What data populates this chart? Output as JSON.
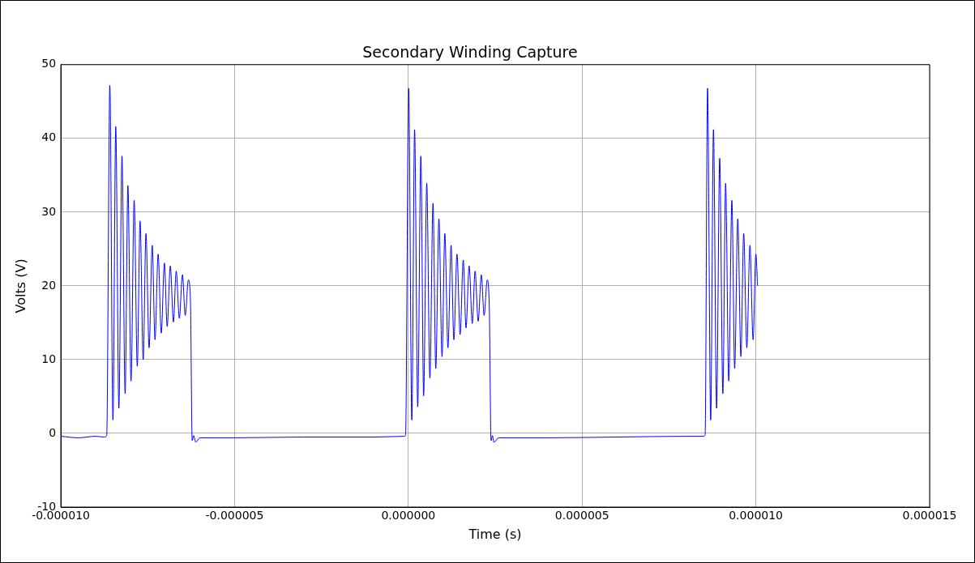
{
  "chart_data": {
    "type": "line",
    "title": "Secondary Winding Capture",
    "xlabel": "Time (s)",
    "ylabel": "Volts (V)",
    "xlim": [
      -1e-05,
      1.5e-05
    ],
    "ylim": [
      -10,
      50
    ],
    "xticks": [
      {
        "value": -1e-05,
        "label": "-0.000010"
      },
      {
        "value": -5e-06,
        "label": "-0.000005"
      },
      {
        "value": 0,
        "label": "0.000000"
      },
      {
        "value": 5e-06,
        "label": "0.000005"
      },
      {
        "value": 1e-05,
        "label": "0.000010"
      },
      {
        "value": 1.5e-05,
        "label": "0.000015"
      }
    ],
    "yticks": [
      -10,
      0,
      10,
      20,
      30,
      40,
      50
    ],
    "grid": true,
    "marker": "none",
    "line_style": "solid",
    "legend": false,
    "series": [
      {
        "color": "#0000ff",
        "x": [
          -1e-05,
          -9.5e-06,
          -9e-06,
          -8.75e-06,
          -8.68e-06,
          -8.59e-06,
          -8.5e-06,
          -8.42e-06,
          -8.33e-06,
          -8.24e-06,
          -8.15e-06,
          -8.07e-06,
          -7.98e-06,
          -7.89e-06,
          -7.8e-06,
          -7.72e-06,
          -7.63e-06,
          -7.55e-06,
          -7.46e-06,
          -7.37e-06,
          -7.29e-06,
          -7.2e-06,
          -7.11e-06,
          -7.02e-06,
          -6.94e-06,
          -6.85e-06,
          -6.76e-06,
          -6.68e-06,
          -6.59e-06,
          -6.5e-06,
          -6.42e-06,
          -6.33e-06,
          -6.27e-06,
          -6.22e-06,
          -6.18e-06,
          -6.12e-06,
          -6e-06,
          -5e-06,
          -3e-06,
          -1e-06,
          -1.2e-07,
          -8e-08,
          1e-08,
          1e-07,
          1.8e-07,
          2.7e-07,
          3.6e-07,
          4.4e-07,
          5.3e-07,
          6.2e-07,
          7.1e-07,
          7.9e-07,
          8.8e-07,
          9.7e-07,
          1.05e-06,
          1.14e-06,
          1.23e-06,
          1.31e-06,
          1.4e-06,
          1.49e-06,
          1.58e-06,
          1.66e-06,
          1.75e-06,
          1.84e-06,
          1.92e-06,
          2.01e-06,
          2.1e-06,
          2.18e-06,
          2.27e-06,
          2.33e-06,
          2.38e-06,
          2.42e-06,
          2.46e-06,
          2.6e-06,
          4e-06,
          6e-06,
          8e-06,
          8.5e-06,
          8.54e-06,
          8.61e-06,
          8.7e-06,
          8.78e-06,
          8.87e-06,
          8.96e-06,
          9.05e-06,
          9.13e-06,
          9.22e-06,
          9.31e-06,
          9.39e-06,
          9.48e-06,
          9.57e-06,
          9.65e-06,
          9.74e-06,
          9.83e-06,
          9.92e-06,
          1e-05,
          1.005e-05
        ],
        "values": [
          -0.4,
          -0.6,
          -0.4,
          -0.5,
          -0.3,
          47.2,
          1.8,
          41.6,
          3.4,
          37.6,
          5.4,
          33.6,
          7.1,
          31.6,
          9.1,
          28.8,
          10.0,
          27.1,
          11.6,
          25.5,
          12.7,
          24.3,
          13.6,
          23.1,
          14.5,
          22.7,
          15.1,
          22.0,
          15.6,
          21.5,
          16.0,
          20.8,
          18.0,
          -1.0,
          -0.3,
          -1.2,
          -0.6,
          -0.6,
          -0.5,
          -0.5,
          -0.4,
          -0.2,
          46.8,
          1.8,
          41.2,
          3.6,
          37.6,
          5.1,
          33.9,
          7.5,
          31.2,
          8.8,
          29.1,
          10.4,
          27.1,
          11.6,
          25.5,
          12.7,
          24.3,
          13.4,
          23.5,
          14.3,
          22.7,
          14.9,
          22.0,
          15.2,
          21.5,
          16.0,
          20.8,
          17.0,
          -1.0,
          -0.3,
          -1.2,
          -0.6,
          -0.6,
          -0.5,
          -0.4,
          -0.4,
          -0.2,
          46.8,
          1.8,
          41.2,
          3.4,
          37.3,
          5.4,
          33.9,
          7.1,
          31.6,
          8.8,
          29.1,
          10.4,
          27.1,
          11.6,
          25.5,
          12.7,
          24.3,
          20.0
        ]
      }
    ]
  }
}
